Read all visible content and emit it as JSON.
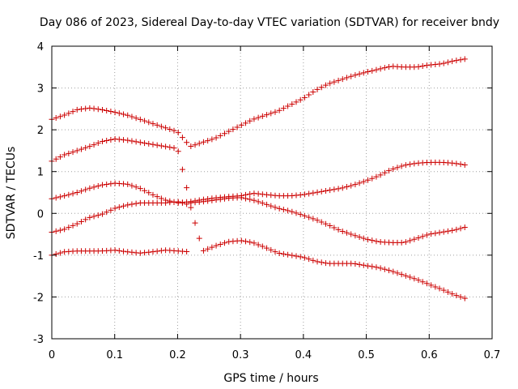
{
  "chart_data": {
    "type": "scatter",
    "title": "Day 086 of 2023, Sidereal Day-to-day VTEC variation (SDTVAR) for receiver bndy",
    "xlabel": "GPS time / hours",
    "ylabel": "SDTVAR / TECUs",
    "xlim": [
      0,
      0.7
    ],
    "ylim": [
      -3,
      4
    ],
    "xticks": [
      0,
      0.1,
      0.2,
      0.3,
      0.4,
      0.5,
      0.6,
      0.7
    ],
    "xtick_labels": [
      "0",
      "0.1",
      "0.2",
      "0.3",
      "0.4",
      "0.5",
      "0.6",
      "0.7"
    ],
    "yticks": [
      -3,
      -2,
      -1,
      0,
      1,
      2,
      3,
      4
    ],
    "ytick_labels": [
      "-3",
      "-2",
      "-1",
      "0",
      "1",
      "2",
      "3",
      "4"
    ],
    "grid": true,
    "marker": "+",
    "color": "#cc0000",
    "series": [
      {
        "name": "series-1",
        "x": [
          0,
          0.02,
          0.04,
          0.06,
          0.08,
          0.1,
          0.12,
          0.14,
          0.16,
          0.18,
          0.2,
          0.22,
          0.24,
          0.26,
          0.28,
          0.3,
          0.32,
          0.34,
          0.36,
          0.38,
          0.4,
          0.42,
          0.44,
          0.46,
          0.48,
          0.5,
          0.52,
          0.54,
          0.56,
          0.58,
          0.6,
          0.62,
          0.64,
          0.66
        ],
        "y": [
          2.25,
          2.35,
          2.48,
          2.52,
          2.48,
          2.42,
          2.35,
          2.25,
          2.15,
          2.05,
          1.95,
          1.6,
          1.7,
          1.8,
          1.95,
          2.1,
          2.25,
          2.35,
          2.45,
          2.6,
          2.75,
          2.95,
          3.1,
          3.2,
          3.3,
          3.38,
          3.45,
          3.52,
          3.5,
          3.5,
          3.55,
          3.58,
          3.65,
          3.7
        ]
      },
      {
        "name": "series-2",
        "x": [
          0,
          0.02,
          0.04,
          0.06,
          0.08,
          0.1,
          0.12,
          0.14,
          0.16,
          0.18,
          0.2,
          0.22,
          0.24,
          0.26,
          0.28,
          0.3,
          0.32,
          0.34,
          0.36,
          0.38,
          0.4,
          0.42,
          0.44,
          0.46,
          0.48,
          0.5,
          0.52,
          0.54,
          0.56,
          0.58,
          0.6,
          0.62,
          0.64,
          0.66
        ],
        "y": [
          1.25,
          1.4,
          1.5,
          1.6,
          1.72,
          1.78,
          1.75,
          1.7,
          1.65,
          1.6,
          1.55,
          0.25,
          0.28,
          0.32,
          0.36,
          0.38,
          0.32,
          0.22,
          0.12,
          0.05,
          -0.05,
          -0.15,
          -0.28,
          -0.42,
          -0.52,
          -0.62,
          -0.68,
          -0.7,
          -0.7,
          -0.6,
          -0.5,
          -0.45,
          -0.4,
          -0.32
        ]
      },
      {
        "name": "series-3",
        "x": [
          0,
          0.02,
          0.04,
          0.06,
          0.08,
          0.1,
          0.12,
          0.14,
          0.16,
          0.18,
          0.2,
          0.22,
          0.24,
          0.26,
          0.28,
          0.3,
          0.32,
          0.34,
          0.36,
          0.38,
          0.4,
          0.42,
          0.44,
          0.46,
          0.48,
          0.5,
          0.52,
          0.54,
          0.56,
          0.58,
          0.6,
          0.62,
          0.64,
          0.66
        ],
        "y": [
          0.35,
          0.42,
          0.5,
          0.6,
          0.68,
          0.72,
          0.7,
          0.6,
          0.45,
          0.32,
          0.25,
          0.28,
          0.33,
          0.37,
          0.4,
          0.42,
          0.48,
          0.45,
          0.42,
          0.42,
          0.45,
          0.5,
          0.55,
          0.6,
          0.68,
          0.78,
          0.9,
          1.05,
          1.15,
          1.2,
          1.22,
          1.22,
          1.2,
          1.15
        ]
      },
      {
        "name": "series-4",
        "x": [
          0,
          0.02,
          0.04,
          0.06,
          0.08,
          0.1,
          0.12,
          0.14,
          0.16,
          0.18,
          0.2,
          0.22,
          0.24,
          0.26,
          0.28,
          0.3,
          0.32,
          0.34,
          0.36,
          0.38,
          0.4,
          0.42,
          0.44,
          0.46,
          0.48,
          0.5,
          0.52,
          0.54,
          0.56,
          0.58,
          0.6,
          0.62,
          0.64,
          0.66
        ],
        "y": [
          -0.45,
          -0.38,
          -0.25,
          -0.1,
          -0.02,
          0.12,
          0.2,
          0.25,
          0.25,
          0.25,
          0.28,
          0.2,
          -0.9,
          -0.78,
          -0.68,
          -0.65,
          -0.7,
          -0.82,
          -0.95,
          -1.0,
          -1.05,
          -1.15,
          -1.2,
          -1.2,
          -1.2,
          -1.25,
          -1.3,
          -1.38,
          -1.48,
          -1.58,
          -1.7,
          -1.82,
          -1.95,
          -2.05
        ]
      },
      {
        "name": "series-5",
        "x": [
          0,
          0.02,
          0.04,
          0.06,
          0.08,
          0.1,
          0.12,
          0.14,
          0.16,
          0.18,
          0.2,
          0.22
        ],
        "y": [
          -1.0,
          -0.92,
          -0.9,
          -0.9,
          -0.9,
          -0.88,
          -0.92,
          -0.95,
          -0.92,
          -0.88,
          -0.9,
          -0.92
        ]
      }
    ]
  }
}
